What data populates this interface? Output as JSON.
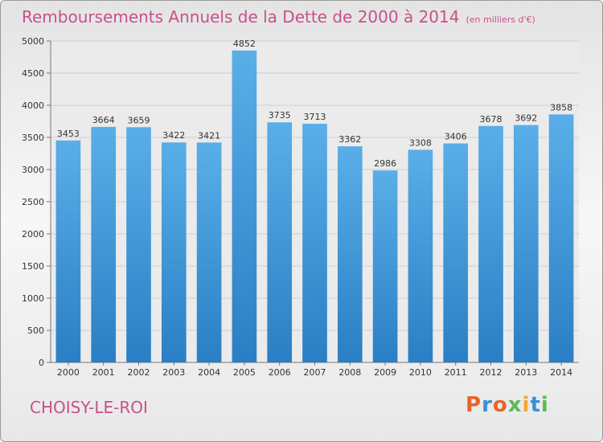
{
  "header": {
    "title": "Remboursements Annuels de la Dette de 2000 à 2014",
    "subtitle": "(en milliers d'€)"
  },
  "footer": {
    "commune": "CHOISY-LE-ROI",
    "logo": "Proxiti",
    "logo_colors": [
      "#e8632a",
      "#3a8fd6",
      "#e8632a",
      "#5cb85c",
      "#f0a830",
      "#3a8fd6",
      "#5cb85c"
    ]
  },
  "colors": {
    "bar_top": "#5aaee8",
    "bar_bottom": "#2a7fc4",
    "title": "#c8508a"
  },
  "chart_data": {
    "type": "bar",
    "categories": [
      "2000",
      "2001",
      "2002",
      "2003",
      "2004",
      "2005",
      "2006",
      "2007",
      "2008",
      "2009",
      "2010",
      "2011",
      "2012",
      "2013",
      "2014"
    ],
    "values": [
      3453,
      3664,
      3659,
      3422,
      3421,
      4852,
      3735,
      3713,
      3362,
      2986,
      3308,
      3406,
      3678,
      3692,
      3858
    ],
    "ylim": [
      0,
      5000
    ],
    "yticks": [
      0,
      500,
      1000,
      1500,
      2000,
      2500,
      3000,
      3500,
      4000,
      4500,
      5000
    ],
    "grid": true,
    "data_labels": true
  }
}
